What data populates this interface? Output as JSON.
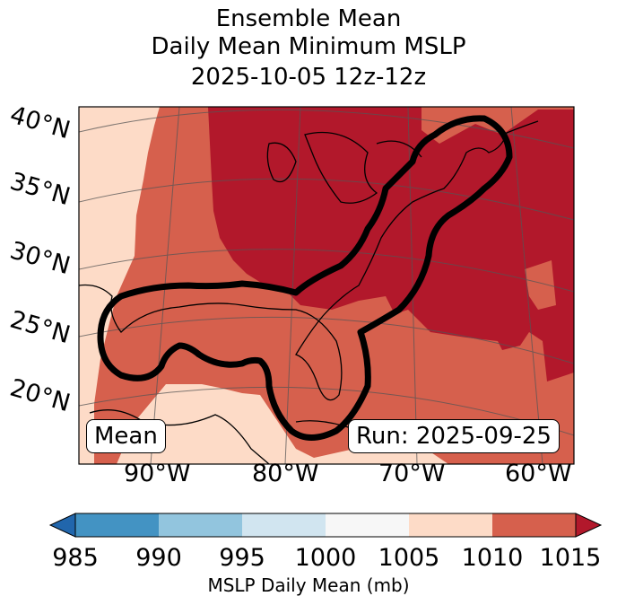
{
  "title": {
    "line1": "Ensemble Mean",
    "line2": "Daily Mean Minimum MSLP",
    "line3": "2025-10-05 12z-12z"
  },
  "map": {
    "lat_labels": [
      "40°N",
      "35°N",
      "30°N",
      "25°N",
      "20°N"
    ],
    "lon_labels": [
      "90°W",
      "80°W",
      "70°W",
      "60°W"
    ],
    "mean_label": "Mean",
    "run_label": "Run: 2025-09-25"
  },
  "colorbar": {
    "ticks": [
      "985",
      "990",
      "995",
      "1000",
      "1005",
      "1010",
      "1015"
    ],
    "label": "MSLP Daily Mean (mb)",
    "colors": [
      "#2166ac",
      "#4393c3",
      "#92c5de",
      "#d1e5f0",
      "#f7f7f7",
      "#fddbc7",
      "#d6604d",
      "#b2182b"
    ]
  }
}
